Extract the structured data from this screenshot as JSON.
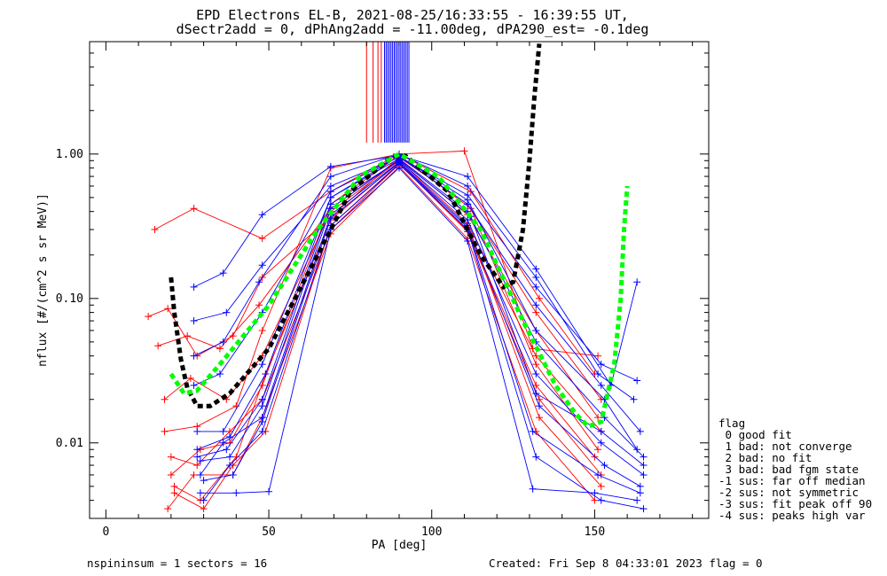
{
  "chart_data": {
    "type": "line",
    "title": "EPD Electrons EL-B, 2021-08-25/16:33:55 - 16:39:55 UT,",
    "subtitle": "dSectr2add = 0, dPhAng2add = -11.00deg, dPA290_est=  -0.1deg",
    "xlabel": "PA [deg]",
    "ylabel": "nflux [#/(cm^2 s sr MeV)]",
    "xlim": [
      -5,
      185
    ],
    "ylim": [
      0.003,
      6.0
    ],
    "yscale": "log",
    "xticks": [
      0,
      50,
      100,
      150
    ],
    "yticks": [
      0.01,
      0.1,
      1.0
    ],
    "ytick_labels": [
      "0.01",
      "0.10",
      "1.00"
    ],
    "series": [
      {
        "color": "#ff0000",
        "points": [
          [
            13,
            0.075
          ],
          [
            19,
            0.085
          ],
          [
            28,
            0.04
          ],
          [
            39,
            0.055
          ],
          [
            48,
            0.14
          ],
          [
            68,
            0.35
          ],
          [
            90,
            0.95
          ],
          [
            111,
            0.45
          ],
          [
            132,
            0.08
          ],
          [
            152,
            0.02
          ]
        ]
      },
      {
        "color": "#ff0000",
        "points": [
          [
            15,
            0.3
          ],
          [
            27,
            0.42
          ],
          [
            48,
            0.26
          ],
          [
            69,
            0.55
          ],
          [
            90,
            1.0
          ],
          [
            112,
            0.55
          ],
          [
            133,
            0.1
          ],
          [
            150,
            0.03
          ]
        ]
      },
      {
        "color": "#ff0000",
        "points": [
          [
            16,
            0.047
          ],
          [
            25,
            0.055
          ],
          [
            35,
            0.045
          ],
          [
            47,
            0.09
          ],
          [
            69,
            0.42
          ],
          [
            90,
            0.92
          ],
          [
            111,
            0.38
          ],
          [
            132,
            0.06
          ],
          [
            151,
            0.015
          ]
        ]
      },
      {
        "color": "#ff0000",
        "points": [
          [
            18,
            0.02
          ],
          [
            26,
            0.028
          ],
          [
            37,
            0.02
          ],
          [
            48,
            0.04
          ],
          [
            69,
            0.4
          ],
          [
            90,
            0.9
          ],
          [
            111,
            0.33
          ],
          [
            132,
            0.04
          ],
          [
            152,
            0.012
          ]
        ]
      },
      {
        "color": "#ff0000",
        "points": [
          [
            20,
            0.008
          ],
          [
            28,
            0.007
          ],
          [
            38,
            0.012
          ],
          [
            48,
            0.02
          ],
          [
            69,
            0.3
          ],
          [
            90,
            0.85
          ],
          [
            111,
            0.3
          ],
          [
            132,
            0.025
          ],
          [
            150,
            0.008
          ]
        ]
      },
      {
        "color": "#ff0000",
        "points": [
          [
            21,
            0.005
          ],
          [
            29,
            0.004
          ],
          [
            40,
            0.008
          ],
          [
            49,
            0.03
          ],
          [
            69,
            0.35
          ],
          [
            90,
            0.88
          ],
          [
            112,
            0.28
          ],
          [
            133,
            0.015
          ],
          [
            152,
            0.005
          ]
        ]
      },
      {
        "color": "#ff0000",
        "points": [
          [
            19,
            0.0035
          ],
          [
            27,
            0.006
          ],
          [
            39,
            0.006
          ],
          [
            48,
            0.015
          ],
          [
            69,
            0.28
          ],
          [
            90,
            0.82
          ],
          [
            111,
            0.26
          ],
          [
            132,
            0.012
          ],
          [
            150,
            0.004
          ]
        ]
      },
      {
        "color": "#ff0000",
        "points": [
          [
            20,
            0.006
          ],
          [
            29,
            0.009
          ],
          [
            38,
            0.01
          ],
          [
            48,
            0.025
          ],
          [
            69,
            0.45
          ],
          [
            90,
            0.98
          ],
          [
            112,
            0.42
          ],
          [
            132,
            0.035
          ],
          [
            151,
            0.009
          ]
        ]
      },
      {
        "color": "#ff0000",
        "points": [
          [
            18,
            0.012
          ],
          [
            28,
            0.013
          ],
          [
            40,
            0.018
          ],
          [
            48,
            0.06
          ],
          [
            69,
            0.8
          ],
          [
            90,
            1.0
          ],
          [
            110,
            1.05
          ],
          [
            131,
            0.045
          ],
          [
            151,
            0.04
          ]
        ]
      },
      {
        "color": "#ff0000",
        "points": [
          [
            21,
            0.0045
          ],
          [
            30,
            0.0035
          ],
          [
            39,
            0.007
          ],
          [
            49,
            0.012
          ],
          [
            69,
            0.32
          ],
          [
            90,
            0.86
          ],
          [
            111,
            0.29
          ],
          [
            133,
            0.02
          ],
          [
            152,
            0.006
          ]
        ]
      },
      {
        "color": "#0000ff",
        "points": [
          [
            27,
            0.12
          ],
          [
            36,
            0.15
          ],
          [
            48,
            0.38
          ],
          [
            69,
            0.82
          ],
          [
            90,
            0.98
          ],
          [
            111,
            0.7
          ],
          [
            132,
            0.16
          ],
          [
            155,
            0.025
          ],
          [
            163,
            0.13
          ]
        ]
      },
      {
        "color": "#0000ff",
        "points": [
          [
            27,
            0.07
          ],
          [
            37,
            0.08
          ],
          [
            48,
            0.17
          ],
          [
            69,
            0.6
          ],
          [
            90,
            0.95
          ],
          [
            111,
            0.52
          ],
          [
            132,
            0.12
          ],
          [
            152,
            0.035
          ],
          [
            163,
            0.027
          ]
        ]
      },
      {
        "color": "#0000ff",
        "points": [
          [
            27,
            0.025
          ],
          [
            35,
            0.03
          ],
          [
            48,
            0.08
          ],
          [
            69,
            0.55
          ],
          [
            90,
            0.96
          ],
          [
            111,
            0.45
          ],
          [
            132,
            0.09
          ],
          [
            152,
            0.025
          ],
          [
            164,
            0.012
          ]
        ]
      },
      {
        "color": "#0000ff",
        "points": [
          [
            28,
            0.012
          ],
          [
            36,
            0.012
          ],
          [
            48,
            0.035
          ],
          [
            69,
            0.5
          ],
          [
            90,
            0.93
          ],
          [
            111,
            0.4
          ],
          [
            132,
            0.05
          ],
          [
            153,
            0.015
          ],
          [
            165,
            0.008
          ]
        ]
      },
      {
        "color": "#0000ff",
        "points": [
          [
            28,
            0.008
          ],
          [
            37,
            0.009
          ],
          [
            48,
            0.02
          ],
          [
            69,
            0.45
          ],
          [
            90,
            0.9
          ],
          [
            111,
            0.35
          ],
          [
            132,
            0.03
          ],
          [
            152,
            0.01
          ],
          [
            165,
            0.006
          ]
        ]
      },
      {
        "color": "#0000ff",
        "points": [
          [
            29,
            0.006
          ],
          [
            36,
            0.01
          ],
          [
            48,
            0.015
          ],
          [
            69,
            0.38
          ],
          [
            90,
            0.88
          ],
          [
            111,
            0.32
          ],
          [
            133,
            0.018
          ],
          [
            153,
            0.007
          ],
          [
            164,
            0.005
          ]
        ]
      },
      {
        "color": "#0000ff",
        "points": [
          [
            30,
            0.004
          ],
          [
            38,
            0.007
          ],
          [
            48,
            0.012
          ],
          [
            69,
            0.32
          ],
          [
            90,
            0.85
          ],
          [
            111,
            0.3
          ],
          [
            132,
            0.008
          ],
          [
            152,
            0.004
          ],
          [
            165,
            0.0035
          ]
        ]
      },
      {
        "color": "#0000ff",
        "points": [
          [
            29,
            0.0045
          ],
          [
            40,
            0.0045
          ],
          [
            50,
            0.0046
          ],
          [
            69,
            0.3
          ],
          [
            90,
            0.8
          ],
          [
            111,
            0.25
          ],
          [
            131,
            0.0048
          ],
          [
            150,
            0.0045
          ],
          [
            163,
            0.004
          ]
        ]
      },
      {
        "color": "#0000ff",
        "points": [
          [
            28,
            0.009
          ],
          [
            38,
            0.011
          ],
          [
            49,
            0.03
          ],
          [
            69,
            0.5
          ],
          [
            90,
            0.97
          ],
          [
            111,
            0.48
          ],
          [
            132,
            0.06
          ],
          [
            153,
            0.02
          ],
          [
            163,
            0.009
          ]
        ]
      },
      {
        "color": "#0000ff",
        "points": [
          [
            27,
            0.04
          ],
          [
            36,
            0.05
          ],
          [
            47,
            0.13
          ],
          [
            69,
            0.7
          ],
          [
            90,
            1.0
          ],
          [
            111,
            0.6
          ],
          [
            132,
            0.14
          ],
          [
            151,
            0.03
          ],
          [
            162,
            0.02
          ]
        ]
      },
      {
        "color": "#0000ff",
        "points": [
          [
            29,
            0.0075
          ],
          [
            38,
            0.008
          ],
          [
            48,
            0.018
          ],
          [
            69,
            0.42
          ],
          [
            90,
            0.91
          ],
          [
            112,
            0.37
          ],
          [
            132,
            0.022
          ],
          [
            152,
            0.012
          ],
          [
            165,
            0.007
          ]
        ]
      },
      {
        "color": "#0000ff",
        "points": [
          [
            30,
            0.0055
          ],
          [
            39,
            0.006
          ],
          [
            48,
            0.014
          ],
          [
            69,
            0.36
          ],
          [
            90,
            0.87
          ],
          [
            111,
            0.31
          ],
          [
            131,
            0.012
          ],
          [
            151,
            0.006
          ],
          [
            164,
            0.0045
          ]
        ]
      }
    ],
    "fit_curves": [
      {
        "color": "#000000",
        "points": [
          [
            20,
            0.14
          ],
          [
            21,
            0.08
          ],
          [
            23,
            0.038
          ],
          [
            25,
            0.024
          ],
          [
            28,
            0.018
          ],
          [
            32,
            0.018
          ],
          [
            38,
            0.022
          ],
          [
            50,
            0.045
          ],
          [
            65,
            0.2
          ],
          [
            75,
            0.55
          ],
          [
            88,
            0.97
          ],
          [
            92,
            0.97
          ],
          [
            105,
            0.55
          ],
          [
            115,
            0.2
          ],
          [
            122,
            0.12
          ],
          [
            125,
            0.13
          ],
          [
            128,
            0.3
          ],
          [
            130,
            0.9
          ],
          [
            131.5,
            2.5
          ],
          [
            133,
            5.8
          ]
        ]
      },
      {
        "color": "#00ff00",
        "points": [
          [
            20,
            0.03
          ],
          [
            24,
            0.022
          ],
          [
            28,
            0.023
          ],
          [
            35,
            0.035
          ],
          [
            50,
            0.09
          ],
          [
            65,
            0.3
          ],
          [
            78,
            0.7
          ],
          [
            90,
            1.0
          ],
          [
            102,
            0.7
          ],
          [
            115,
            0.3
          ],
          [
            128,
            0.07
          ],
          [
            138,
            0.025
          ],
          [
            144,
            0.016
          ],
          [
            148,
            0.013
          ],
          [
            152,
            0.014
          ],
          [
            156,
            0.035
          ],
          [
            158,
            0.1
          ],
          [
            159,
            0.3
          ],
          [
            160,
            0.6
          ]
        ]
      }
    ],
    "spike_lines": [
      {
        "color": "#ff0000",
        "xs": [
          80,
          82,
          83.5,
          84.5
        ]
      },
      {
        "color": "#0000ff",
        "xs": [
          85.5,
          86,
          86.5,
          87,
          87.5,
          88,
          88.5,
          89,
          89.5,
          90,
          90.5,
          91,
          91.5,
          92,
          92.5,
          93
        ]
      }
    ]
  },
  "legend": {
    "title": "flag",
    "items": [
      " 0 good fit",
      " 1 bad: not converge",
      " 2 bad: no fit",
      " 3 bad: bad fgm state",
      "-1 sus: far off median",
      "-2 sus: not symmetric",
      "-3 sus: fit peak off 90",
      "-4 sus: peaks high var"
    ]
  },
  "footer": {
    "left": "nspininsum =  1  sectors = 16",
    "right": "Created: Fri Sep  8 04:33:01 2023   flag = 0"
  }
}
